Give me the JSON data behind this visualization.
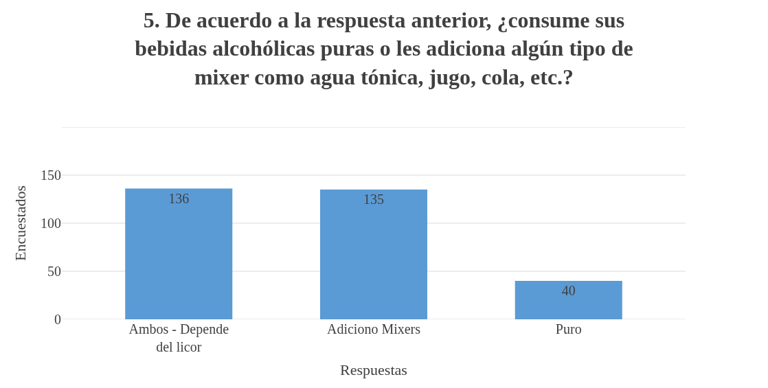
{
  "chart_data": {
    "type": "bar",
    "title": "5. De acuerdo a la respuesta anterior, ¿consume sus bebidas alcohólicas puras o les adiciona algún tipo de mixer como agua tónica, jugo, cola, etc.?",
    "xlabel": "Respuestas",
    "ylabel": "Encuestados",
    "categories": [
      "Ambos - Depende del licor",
      "Adiciono Mixers",
      "Puro"
    ],
    "values": [
      136,
      135,
      40
    ],
    "color": "#5b9bd5",
    "ylim": [
      0,
      200
    ],
    "yticks": [
      0,
      50,
      100,
      150,
      {
        "value": 200,
        "label": null
      }
    ],
    "grid": "y",
    "data_labels": true,
    "legend": false
  }
}
